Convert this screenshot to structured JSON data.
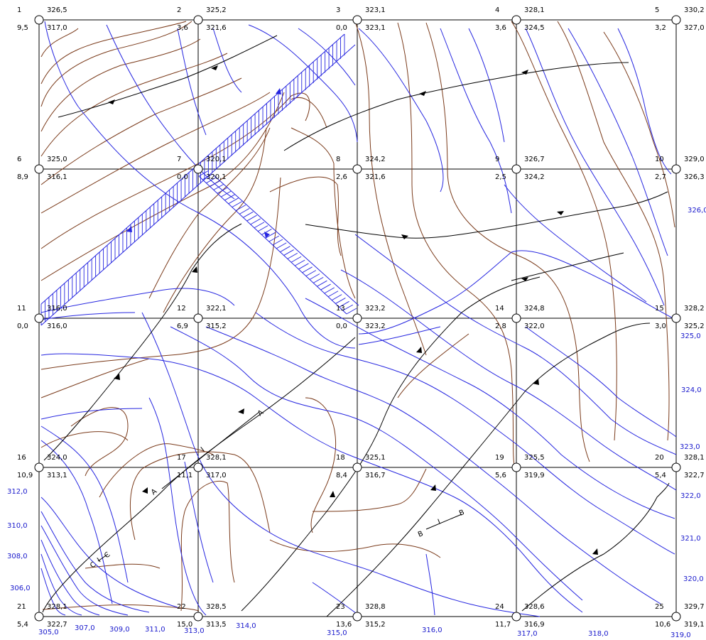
{
  "nodes": [
    {
      "id": "1",
      "top": "326,5",
      "left": "9,5",
      "bottom": "317,0"
    },
    {
      "id": "2",
      "top": "325,2",
      "left": "3,6",
      "bottom": "321,6"
    },
    {
      "id": "3",
      "top": "323,1",
      "left": "0,0",
      "bottom": "323,1"
    },
    {
      "id": "4",
      "top": "328,1",
      "left": "3,6",
      "bottom": "324,5"
    },
    {
      "id": "5",
      "top": "330,2",
      "left": "3,2",
      "bottom": "327,0"
    },
    {
      "id": "6",
      "top": "325,0",
      "left": "8,9",
      "bottom": "316,1"
    },
    {
      "id": "7",
      "top": "320,1",
      "left": "0,0",
      "bottom": "320,1"
    },
    {
      "id": "8",
      "top": "324,2",
      "left": "2,6",
      "bottom": "321,6"
    },
    {
      "id": "9",
      "top": "326,7",
      "left": "2,5",
      "bottom": "324,2"
    },
    {
      "id": "10",
      "top": "329,0",
      "left": "2,7",
      "bottom": "326,3"
    },
    {
      "id": "11",
      "top": "316,0",
      "left": "0,0",
      "bottom": "316,0"
    },
    {
      "id": "12",
      "top": "322,1",
      "left": "6,9",
      "bottom": "315,2"
    },
    {
      "id": "13",
      "top": "323,2",
      "left": "0,0",
      "bottom": "323,2"
    },
    {
      "id": "14",
      "top": "324,8",
      "left": "2,8",
      "bottom": "322,0"
    },
    {
      "id": "15",
      "top": "328,2",
      "left": "3,0",
      "bottom": "325,2"
    },
    {
      "id": "16",
      "top": "324,0",
      "left": "10,9",
      "bottom": "313,1"
    },
    {
      "id": "17",
      "top": "328,1",
      "left": "11,1",
      "bottom": "317,0"
    },
    {
      "id": "18",
      "top": "325,1",
      "left": "8,4",
      "bottom": "316,7"
    },
    {
      "id": "19",
      "top": "325,5",
      "left": "5,6",
      "bottom": "319,9"
    },
    {
      "id": "20",
      "top": "328,1",
      "left": "5,4",
      "bottom": "322,7"
    },
    {
      "id": "21",
      "top": "328,1",
      "left": "5,4",
      "bottom": "322,7"
    },
    {
      "id": "22",
      "top": "328,5",
      "left": "15,0",
      "bottom": "313,5"
    },
    {
      "id": "23",
      "top": "328,8",
      "left": "13,6",
      "bottom": "315,2"
    },
    {
      "id": "24",
      "top": "328,6",
      "left": "11,7",
      "bottom": "316,9"
    },
    {
      "id": "25",
      "top": "329,7",
      "left": "10,6",
      "bottom": "319,1"
    }
  ],
  "contour_labels": {
    "bottom": [
      "305,0",
      "307,0",
      "309,0",
      "311,0",
      "313,0",
      "314,0",
      "315,0",
      "316,0",
      "317,0",
      "318,0",
      "319,0"
    ],
    "left": [
      "312,0",
      "310,0",
      "308,0",
      "306,0"
    ],
    "right": [
      "326,0",
      "325,0",
      "324,0",
      "323,0",
      "322,0",
      "321,0",
      "320,0"
    ]
  },
  "section_labels": {
    "a_left": "A",
    "a_right": "A",
    "b_left": "B",
    "b_right": "B",
    "c_left": "C",
    "c_right": "C",
    "mark_a": "I",
    "mark_b": "I",
    "mark_c": "I"
  },
  "colors": {
    "brown": "#7a3a1a",
    "blue": "#2626e0",
    "black": "#000000"
  }
}
